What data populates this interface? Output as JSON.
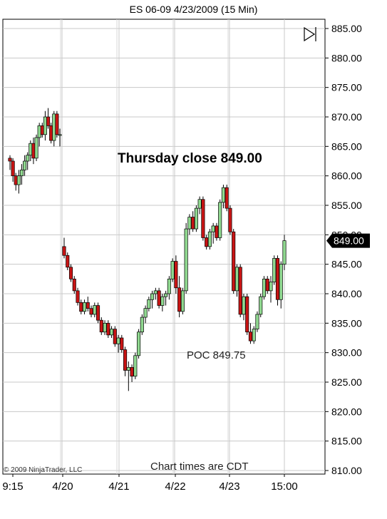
{
  "chart_data": {
    "type": "candlestick",
    "title": "ES 06-09  4/23/2009 (15 Min)",
    "ylim": [
      810,
      885
    ],
    "y_ticks": [
      "885.00",
      "880.00",
      "875.00",
      "870.00",
      "865.00",
      "860.00",
      "855.00",
      "850.00",
      "845.00",
      "840.00",
      "835.00",
      "830.00",
      "825.00",
      "820.00",
      "815.00",
      "810.00"
    ],
    "x_ticks": [
      "9:15",
      "4/20",
      "4/21",
      "4/22",
      "4/23",
      "15:00"
    ],
    "last_price": "849.00",
    "annotations": {
      "headline": "Thursday close 849.00",
      "poc": "POC 849.75",
      "times_note": "Chart times are CDT",
      "copyright": "© 2009 NinjaTrader, LLC"
    },
    "colors": {
      "up": "#90d890",
      "down": "#c81414",
      "grid": "#c8c8c8",
      "wick": "#000000"
    },
    "candles": [
      [
        863,
        863.5,
        861,
        862.5
      ],
      [
        862.5,
        863,
        859,
        860
      ],
      [
        860,
        860.5,
        857.5,
        858.5
      ],
      [
        858.5,
        861,
        857,
        860
      ],
      [
        860,
        862,
        858.5,
        861
      ],
      [
        861,
        863.5,
        860,
        862.5
      ],
      [
        862.5,
        864,
        861,
        863.5
      ],
      [
        863.5,
        866,
        862.5,
        865.5
      ],
      [
        865.5,
        866.5,
        862,
        863
      ],
      [
        863,
        867,
        862.5,
        866.5
      ],
      [
        866.5,
        869,
        865,
        868.5
      ],
      [
        868.5,
        869,
        866.5,
        867
      ],
      [
        867,
        871,
        866,
        870
      ],
      [
        870,
        871.5,
        868,
        868.5
      ],
      [
        868.5,
        869,
        865.5,
        866
      ],
      [
        866,
        871,
        865,
        870.5
      ],
      [
        870.5,
        871,
        866.5,
        867
      ],
      [
        867,
        868,
        865,
        867
      ],
      [
        848,
        849.5,
        846,
        846.5
      ],
      [
        846.5,
        847,
        844,
        844.5
      ],
      [
        844.5,
        845,
        842,
        842.5
      ],
      [
        842.5,
        843,
        840,
        840.5
      ],
      [
        840.5,
        841,
        838,
        838.5
      ],
      [
        838.5,
        839,
        836.5,
        837
      ],
      [
        837,
        839,
        836.5,
        838.5
      ],
      [
        838.5,
        839.5,
        837,
        837.5
      ],
      [
        837.5,
        838,
        836,
        836.5
      ],
      [
        836.5,
        838.5,
        836,
        838
      ],
      [
        838,
        838.5,
        835,
        835.5
      ],
      [
        835.5,
        836,
        833,
        833.5
      ],
      [
        833.5,
        835.5,
        833,
        835
      ],
      [
        835,
        835.5,
        832.5,
        833
      ],
      [
        833,
        834.5,
        832.5,
        834
      ],
      [
        834,
        834.5,
        831,
        831.5
      ],
      [
        831.5,
        833,
        830,
        832.5
      ],
      [
        832.5,
        833,
        830,
        830.5
      ],
      [
        830.5,
        831,
        826,
        827
      ],
      [
        827,
        828.5,
        823.5,
        827.5
      ],
      [
        827.5,
        828,
        825,
        826
      ],
      [
        826,
        830,
        825.5,
        829.5
      ],
      [
        829.5,
        834,
        829,
        833.5
      ],
      [
        833.5,
        836.5,
        833,
        836
      ],
      [
        836,
        838,
        835,
        837.5
      ],
      [
        837.5,
        839.5,
        837,
        839
      ],
      [
        839,
        840.5,
        837.5,
        840
      ],
      [
        840,
        841,
        839,
        840.5
      ],
      [
        840.5,
        841,
        837.5,
        838
      ],
      [
        838,
        840,
        837,
        839.5
      ],
      [
        839.5,
        840.5,
        838,
        840
      ],
      [
        840,
        843,
        839,
        842.5
      ],
      [
        842.5,
        846,
        842,
        845.5
      ],
      [
        845.5,
        846.5,
        840,
        841
      ],
      [
        841,
        843,
        836,
        837
      ],
      [
        837,
        841,
        836.5,
        840.5
      ],
      [
        840.5,
        852,
        840,
        851
      ],
      [
        851,
        853.5,
        850,
        853
      ],
      [
        853,
        854,
        850.5,
        851
      ],
      [
        851,
        855,
        850.5,
        854.5
      ],
      [
        854.5,
        856.5,
        853.5,
        856
      ],
      [
        856,
        856.5,
        849,
        849.5
      ],
      [
        849.5,
        850,
        847.5,
        848
      ],
      [
        848,
        851,
        847.5,
        850.5
      ],
      [
        850.5,
        852,
        848.5,
        851.5
      ],
      [
        851.5,
        852,
        849,
        849.5
      ],
      [
        849.5,
        856,
        849,
        855.5
      ],
      [
        855.5,
        858.5,
        854.5,
        858
      ],
      [
        858,
        858.5,
        854,
        854.5
      ],
      [
        854.5,
        855,
        850,
        850.5
      ],
      [
        850.5,
        851,
        840,
        840.5
      ],
      [
        840.5,
        845,
        839.5,
        844.5
      ],
      [
        844.5,
        845,
        836,
        836.5
      ],
      [
        836.5,
        840,
        835.5,
        839.5
      ],
      [
        839.5,
        840,
        833,
        833.5
      ],
      [
        833.5,
        835,
        831.5,
        832
      ],
      [
        832,
        834.5,
        831.5,
        834
      ],
      [
        834,
        837,
        833.5,
        836.5
      ],
      [
        836.5,
        840,
        836,
        839.5
      ],
      [
        839.5,
        843,
        839,
        842.5
      ],
      [
        842.5,
        843,
        840,
        840.5
      ],
      [
        840.5,
        843,
        838.5,
        842
      ],
      [
        842,
        846.5,
        841.5,
        846
      ],
      [
        846,
        846.5,
        838,
        839
      ],
      [
        839,
        845.5,
        837.5,
        845
      ],
      [
        845,
        850,
        844,
        849
      ]
    ]
  }
}
